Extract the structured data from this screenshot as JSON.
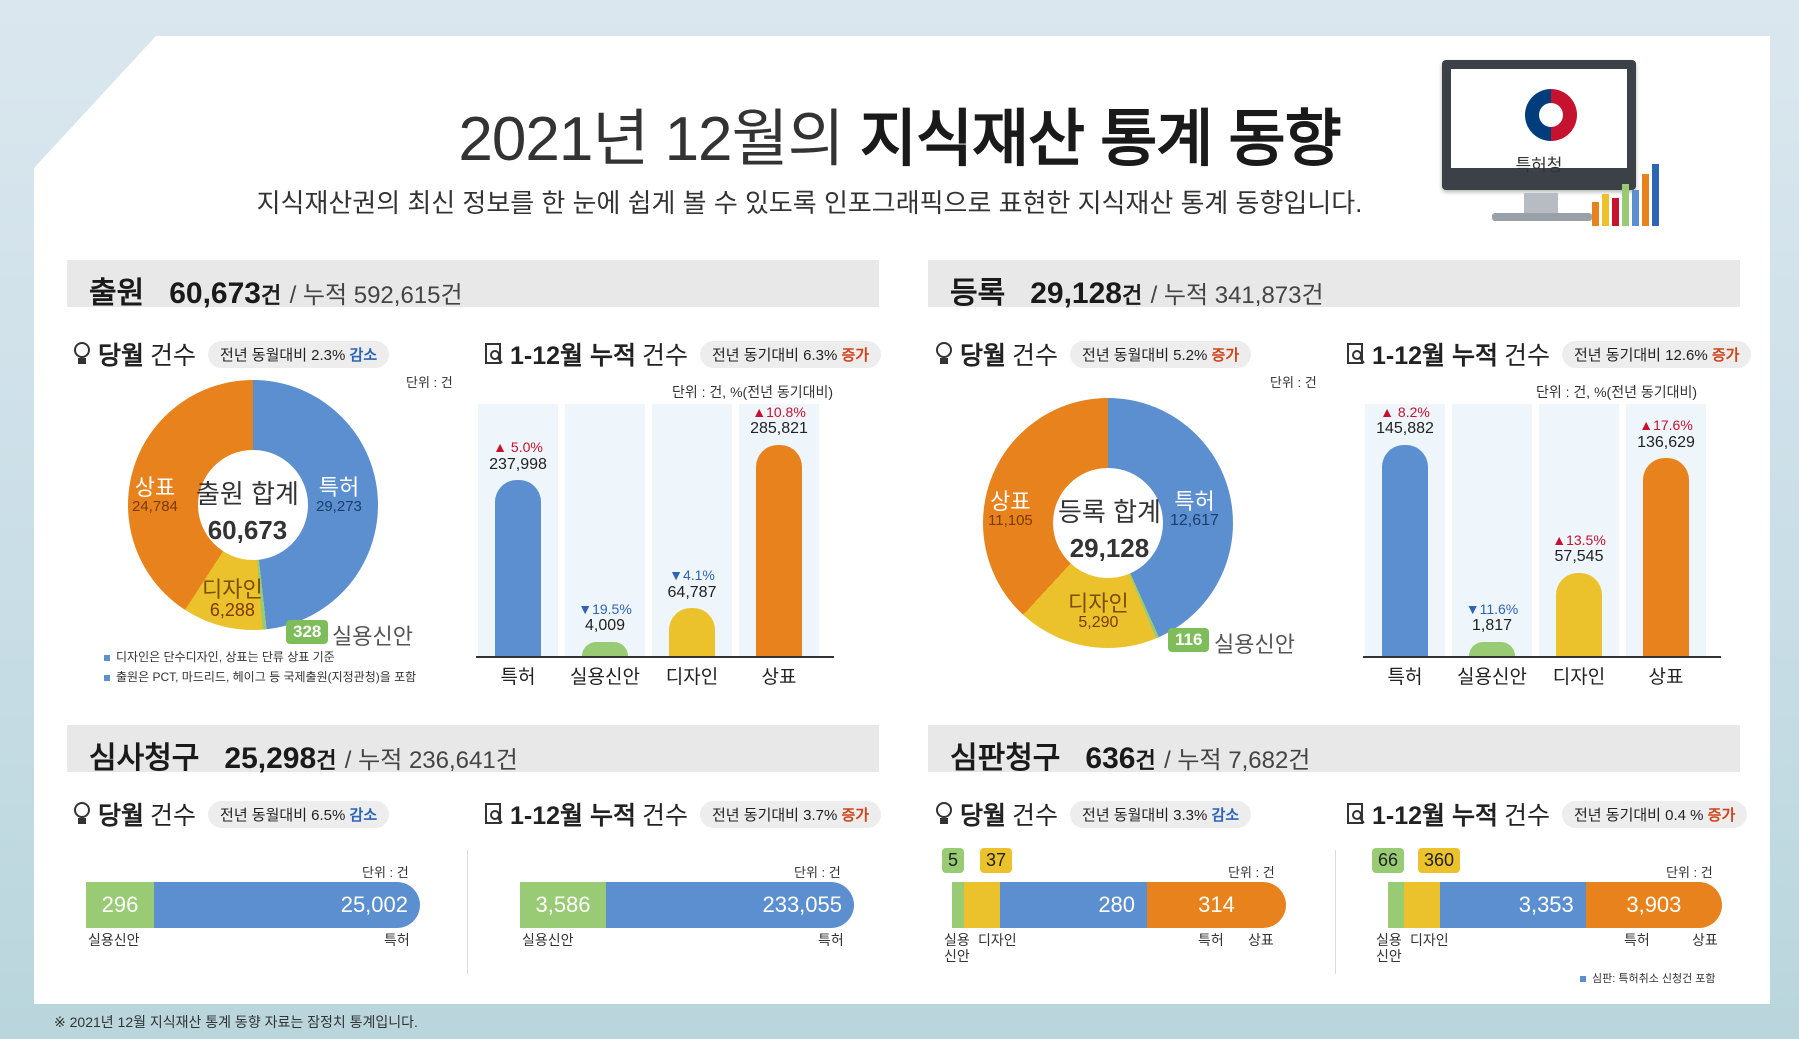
{
  "header": {
    "title_light": "2021년 12월의",
    "title_bold": "지식재산 통계 동향",
    "subtitle": "지식재산권의 최신 정보를 한 눈에 쉽게 볼 수 있도록 인포그래픽으로 표현한 지식재산 통계 동향입니다.",
    "logo_text": "특허청"
  },
  "labels": {
    "monthly": "당월",
    "count": "건수",
    "cumulative": "1-12월 누적",
    "unit_gun": "단위 : 건",
    "unit_pct": "단위 : 건, %(전년 동기대비)"
  },
  "application": {
    "title": "출원",
    "value": "60,673",
    "gun": "건",
    "cum": "/ 누적 592,615건",
    "monthly_pill": "전년 동월대비 2.3%",
    "monthly_dir": "감소",
    "cum_pill": "전년 동기대비 6.3%",
    "cum_dir": "증가",
    "donut_center_label": "출원 합계",
    "donut_center_value": "60,673",
    "utility_label": "실용신안",
    "notes": [
      "디자인은 단수디자인, 상표는 단류 상표 기준",
      "출원은 PCT, 마드리드, 헤이그 등 국제출원(지정관청)을 포함"
    ]
  },
  "registration": {
    "title": "등록",
    "value": "29,128",
    "gun": "건",
    "cum": "/ 누적 341,873건",
    "monthly_pill": "전년 동월대비 5.2%",
    "monthly_dir": "증가",
    "cum_pill": "전년 동기대비 12.6%",
    "cum_dir": "증가",
    "donut_center_label": "등록 합계",
    "donut_center_value": "29,128",
    "utility_label": "실용신안"
  },
  "exam": {
    "title": "심사청구",
    "value": "25,298",
    "gun": "건",
    "cum": "/ 누적 236,641건",
    "monthly_pill": "전년 동월대비 6.5%",
    "monthly_dir": "감소",
    "cum_pill": "전년 동기대비 3.7%",
    "cum_dir": "증가"
  },
  "trial": {
    "title": "심판청구",
    "value": "636",
    "gun": "건",
    "cum": "/ 누적 7,682건",
    "monthly_pill": "전년 동월대비 3.3%",
    "monthly_dir": "감소",
    "cum_pill": "전년 동기대비 0.4 %",
    "cum_dir": "증가",
    "note": "심판: 특허취소 신청건 포함"
  },
  "colors": {
    "patent": "#5b8fd0",
    "utility": "#98cb74",
    "design": "#ebc22b",
    "trademark": "#e8821c"
  },
  "footer": "※ 2021년 12월 지식재산 통계 동향 자료는 잠정치 통계입니다.",
  "chart_data": [
    {
      "type": "pie",
      "id": "app_monthly",
      "labels": [
        "특허",
        "실용신안",
        "디자인",
        "상표"
      ],
      "values": [
        29273,
        328,
        6288,
        24784
      ],
      "display": [
        "29,273",
        "328",
        "6,288",
        "24,784"
      ]
    },
    {
      "type": "bar",
      "id": "app_cum",
      "categories": [
        "특허",
        "실용신안",
        "디자인",
        "상표"
      ],
      "values": [
        237998,
        4009,
        64787,
        285821
      ],
      "display": [
        "237,998",
        "4,009",
        "64,787",
        "285,821"
      ],
      "change": [
        "▲ 5.0%",
        "▼19.5%",
        "▼4.1%",
        "▲10.8%"
      ]
    },
    {
      "type": "pie",
      "id": "reg_monthly",
      "labels": [
        "특허",
        "실용신안",
        "디자인",
        "상표"
      ],
      "values": [
        12617,
        116,
        5290,
        11105
      ],
      "display": [
        "12,617",
        "116",
        "5,290",
        "11,105"
      ]
    },
    {
      "type": "bar",
      "id": "reg_cum",
      "categories": [
        "특허",
        "실용신안",
        "디자인",
        "상표"
      ],
      "values": [
        145882,
        1817,
        57545,
        136629
      ],
      "display": [
        "145,882",
        "1,817",
        "57,545",
        "136,629"
      ],
      "change": [
        "▲ 8.2%",
        "▼11.6%",
        "▲13.5%",
        "▲17.6%"
      ]
    },
    {
      "type": "bar",
      "id": "exam_monthly",
      "orientation": "stacked-horizontal",
      "categories": [
        "실용신안",
        "특허"
      ],
      "values": [
        296,
        25002
      ],
      "display": [
        "296",
        "25,002"
      ]
    },
    {
      "type": "bar",
      "id": "exam_cum",
      "orientation": "stacked-horizontal",
      "categories": [
        "실용신안",
        "특허"
      ],
      "values": [
        3586,
        233055
      ],
      "display": [
        "3,586",
        "233,055"
      ]
    },
    {
      "type": "bar",
      "id": "trial_monthly",
      "orientation": "stacked-horizontal",
      "categories": [
        "실용신안",
        "디자인",
        "특허",
        "상표"
      ],
      "values": [
        5,
        37,
        280,
        314
      ],
      "display": [
        "5",
        "37",
        "280",
        "314"
      ],
      "axis_labels": [
        "실용\n신안",
        "디자인",
        "특허",
        "상표"
      ]
    },
    {
      "type": "bar",
      "id": "trial_cum",
      "orientation": "stacked-horizontal",
      "categories": [
        "실용신안",
        "디자인",
        "특허",
        "상표"
      ],
      "values": [
        66,
        360,
        3353,
        3903
      ],
      "display": [
        "66",
        "360",
        "3,353",
        "3,903"
      ],
      "axis_labels": [
        "실용\n신안",
        "디자인",
        "특허",
        "상표"
      ]
    }
  ]
}
